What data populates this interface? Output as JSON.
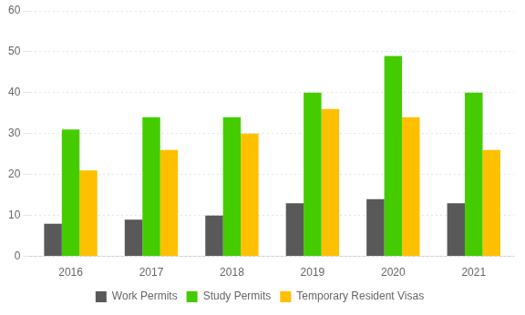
{
  "chart_data": {
    "type": "bar",
    "categories": [
      "2016",
      "2017",
      "2018",
      "2019",
      "2020",
      "2021"
    ],
    "series": [
      {
        "name": "Work Permits",
        "color": "#595959",
        "values": [
          8,
          9,
          10,
          13,
          14,
          13
        ]
      },
      {
        "name": "Study Permits",
        "color": "#44cc00",
        "values": [
          31,
          34,
          34,
          40,
          49,
          40
        ]
      },
      {
        "name": "Temporary Resident Visas",
        "color": "#ffc000",
        "values": [
          21,
          26,
          30,
          36,
          34,
          26
        ]
      }
    ],
    "ylim": [
      0,
      60
    ],
    "yticks": [
      0,
      10,
      20,
      30,
      40,
      50,
      60
    ],
    "grid": true,
    "legend": "bottom"
  }
}
